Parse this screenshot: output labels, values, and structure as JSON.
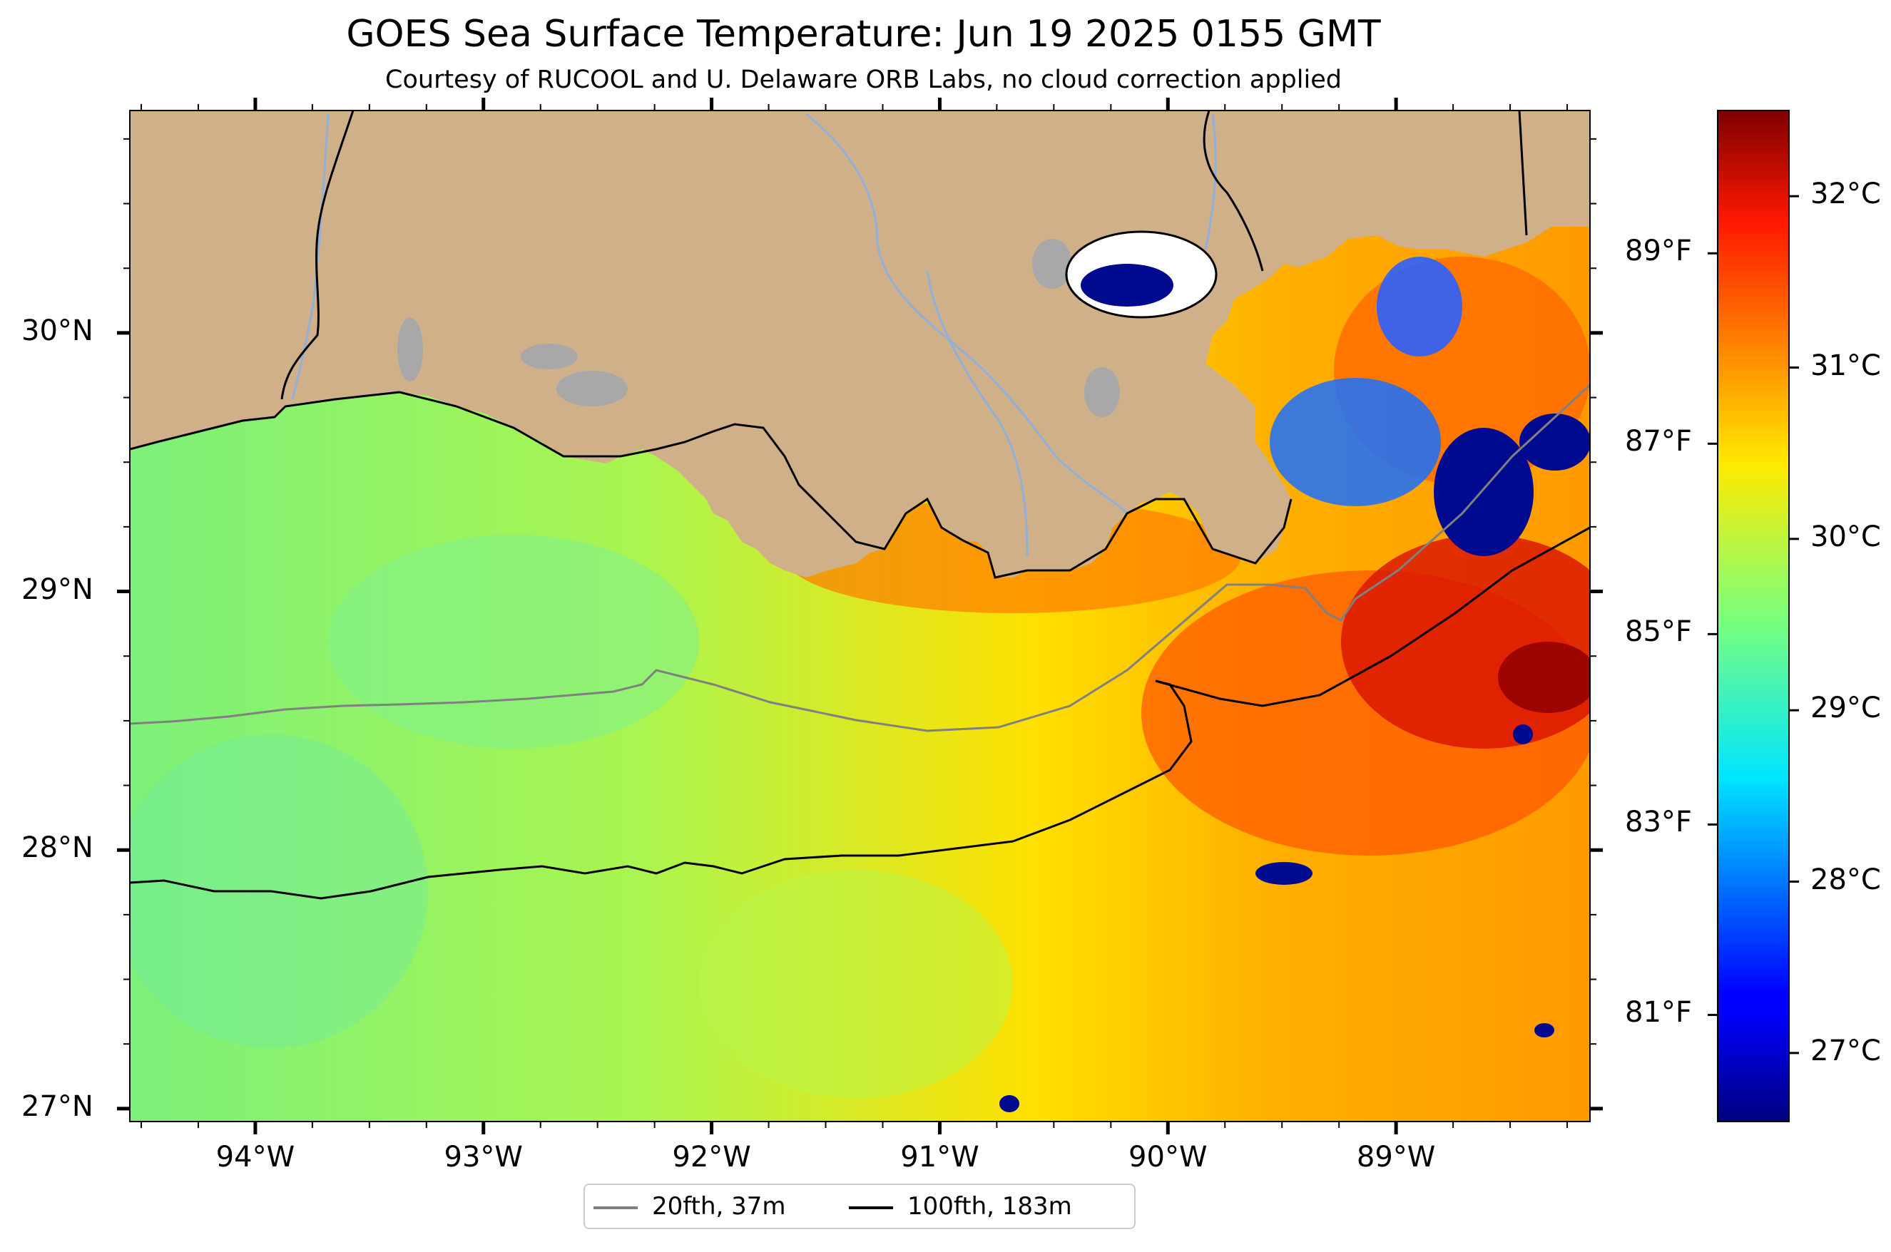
{
  "title": "GOES Sea Surface Temperature: Jun 19 2025 0155 GMT",
  "subtitle": "Courtesy of RUCOOL and U. Delaware ORB Labs, no cloud correction applied",
  "map": {
    "lon_range": [
      -94.55,
      -88.15
    ],
    "lat_range": [
      26.95,
      30.86
    ],
    "lat_ticks": [
      {
        "label": "30°N",
        "lat": 30
      },
      {
        "label": "29°N",
        "lat": 29
      },
      {
        "label": "28°N",
        "lat": 28
      },
      {
        "label": "27°N",
        "lat": 27
      }
    ],
    "lon_ticks": [
      {
        "label": "94°W",
        "lon": -94
      },
      {
        "label": "93°W",
        "lon": -93
      },
      {
        "label": "92°W",
        "lon": -92
      },
      {
        "label": "91°W",
        "lon": -91
      },
      {
        "label": "90°W",
        "lon": -90
      },
      {
        "label": "89°W",
        "lon": -89
      }
    ],
    "colors": {
      "land": "#cfb089",
      "river": "#8fb0d8",
      "lake": "#a8a8a8",
      "coast": "#000000"
    }
  },
  "colorbar": {
    "cmap": "jet",
    "range_c": [
      26.6,
      32.5
    ],
    "celsius_ticks": [
      {
        "label": "27°C",
        "value": 27
      },
      {
        "label": "28°C",
        "value": 28
      },
      {
        "label": "29°C",
        "value": 29
      },
      {
        "label": "30°C",
        "value": 30
      },
      {
        "label": "31°C",
        "value": 31
      },
      {
        "label": "32°C",
        "value": 32
      }
    ],
    "fahrenheit_ticks": [
      {
        "label": "81°F",
        "value": 81
      },
      {
        "label": "83°F",
        "value": 83
      },
      {
        "label": "85°F",
        "value": 85
      },
      {
        "label": "87°F",
        "value": 87
      },
      {
        "label": "89°F",
        "value": 89
      }
    ]
  },
  "legend": {
    "items": [
      {
        "label": "20fth, 37m",
        "color": "#808080"
      },
      {
        "label": "100fth, 183m",
        "color": "#000000"
      }
    ]
  }
}
